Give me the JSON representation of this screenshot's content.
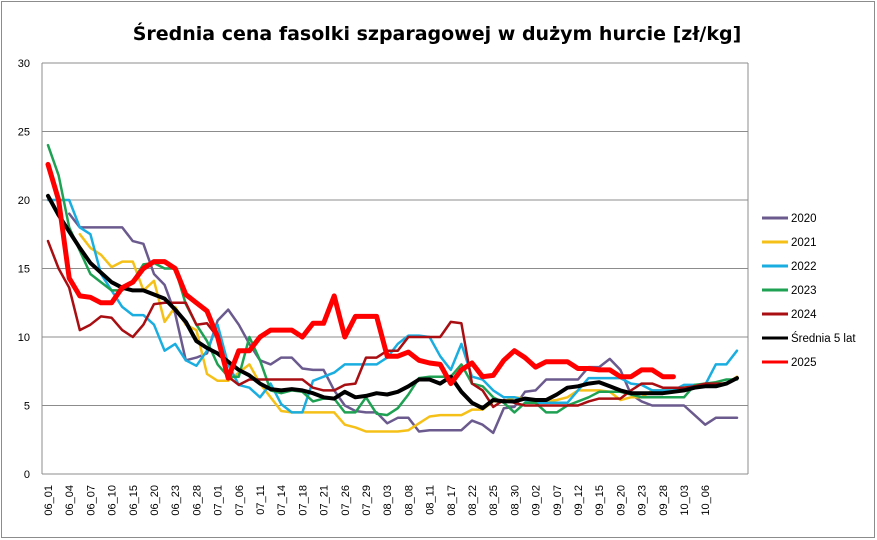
{
  "chart_data": {
    "type": "line",
    "title": "Średnia cena fasolki szparagowej w dużym hurcie [zł/kg]",
    "xlabel": "",
    "ylabel": "",
    "ylim": [
      0,
      30
    ],
    "y_ticks": [
      0,
      5,
      10,
      15,
      20,
      25,
      30
    ],
    "grid": "horizontal",
    "legend_position": "right",
    "x_tick_labels": [
      "06_01",
      "06_04",
      "06_07",
      "06_10",
      "06_15",
      "06_20",
      "06_23",
      "06_28",
      "07_01",
      "07_06",
      "07_11",
      "07_14",
      "07_18",
      "07_21",
      "07_26",
      "07_29",
      "08_03",
      "08_08",
      "08_11",
      "08_17",
      "08_22",
      "08_25",
      "08_30",
      "09_02",
      "09_07",
      "09_12",
      "09_15",
      "09_20",
      "09_23",
      "09_28",
      "10_03",
      "10_06"
    ],
    "points_per_tick": 2,
    "series": [
      {
        "name": "2020",
        "color": "#6B5A8E",
        "width": 2.5,
        "values": [
          null,
          null,
          19,
          18,
          18,
          18,
          18,
          18,
          17,
          16.8,
          14.6,
          13.8,
          11.7,
          8.3,
          8.5,
          8.8,
          11.2,
          12,
          10.9,
          9.5,
          8.3,
          8,
          8.5,
          8.5,
          7.7,
          7.6,
          7.6,
          6.1,
          5,
          4.6,
          4.5,
          4.5,
          3.7,
          4.1,
          4.1,
          3.1,
          3.2,
          3.2,
          3.2,
          3.2,
          3.9,
          3.6,
          3,
          4.8,
          4.9,
          6,
          6.1,
          6.9,
          6.9,
          6.9,
          6.9,
          7.8,
          7.8,
          8.4,
          7.6,
          5.8,
          5.3,
          5,
          5,
          5,
          5,
          4.3,
          3.6,
          4.1,
          4.1,
          4.1
        ]
      },
      {
        "name": "2021",
        "color": "#F5C018",
        "width": 2.5,
        "values": [
          null,
          null,
          null,
          17.5,
          16.5,
          16,
          15.1,
          15.5,
          15.5,
          13.4,
          14.1,
          11.1,
          12.2,
          10.9,
          10.5,
          7.3,
          6.8,
          6.8,
          7.4,
          8,
          6.6,
          5.6,
          4.6,
          4.5,
          4.5,
          4.5,
          4.5,
          4.5,
          3.6,
          3.4,
          3.1,
          3.1,
          3.1,
          3.1,
          3.2,
          3.7,
          4.2,
          4.3,
          4.3,
          4.3,
          4.7,
          4.7,
          5.3,
          5.3,
          5.6,
          5.5,
          5.3,
          5.3,
          5.4,
          5.6,
          6.1,
          6.1,
          6.1,
          6,
          5.4,
          5.6,
          5.6,
          6.1,
          6.1,
          6.1,
          6.4,
          6.4,
          6.6,
          6.6,
          6.6,
          7.1
        ]
      },
      {
        "name": "2022",
        "color": "#1AAEE0",
        "width": 2.5,
        "values": [
          20,
          20,
          20,
          18,
          17.5,
          14.6,
          13.4,
          12.2,
          11.6,
          11.6,
          10.9,
          9,
          9.5,
          8.3,
          7.9,
          9,
          10.9,
          8,
          6.5,
          6.3,
          5.6,
          6.6,
          5.1,
          4.5,
          4.5,
          6.8,
          7.1,
          7.4,
          8,
          8,
          8,
          8,
          8.5,
          9.5,
          10.1,
          10.1,
          10,
          8.6,
          7.6,
          9.5,
          7.1,
          6.9,
          6.1,
          5.6,
          5.6,
          5.4,
          5.2,
          5.2,
          5.2,
          5.2,
          6.1,
          7,
          7,
          7,
          7,
          6.6,
          6.5,
          6.1,
          6.1,
          6.1,
          6.5,
          6.5,
          6.5,
          8,
          8,
          9
        ]
      },
      {
        "name": "2023",
        "color": "#1FA153",
        "width": 2.5,
        "values": [
          24,
          21.8,
          18,
          16.3,
          14.6,
          14,
          13.4,
          13.4,
          14.1,
          15.3,
          15.4,
          15,
          15,
          12.4,
          10.9,
          9.7,
          8,
          7.1,
          7.1,
          10,
          8.3,
          6.1,
          5.9,
          6.1,
          6,
          5.3,
          5.5,
          5.5,
          4.5,
          4.5,
          5.6,
          4.4,
          4.3,
          4.8,
          5.8,
          7,
          7.1,
          7.1,
          7.1,
          8,
          6.6,
          6.4,
          5.6,
          5.2,
          4.5,
          5.2,
          5.2,
          4.5,
          4.5,
          5,
          5.3,
          5.6,
          6,
          6,
          6,
          5.8,
          5.6,
          5.6,
          5.6,
          5.6,
          5.6,
          6.5,
          6.6,
          6.7,
          6.9,
          6.9
        ]
      },
      {
        "name": "2024",
        "color": "#A80E12",
        "width": 2.5,
        "values": [
          17,
          15,
          13.6,
          10.5,
          10.9,
          11.5,
          11.4,
          10.5,
          10,
          10.9,
          12.4,
          12.5,
          12.5,
          12.5,
          10.9,
          11,
          10,
          7.1,
          6.5,
          6.9,
          6.9,
          6.9,
          6.9,
          6.9,
          6.9,
          6.3,
          6.1,
          6.1,
          6.5,
          6.6,
          8.5,
          8.5,
          9,
          9,
          10,
          10,
          10,
          10,
          11.1,
          11,
          6.6,
          6.1,
          4.9,
          5.4,
          5.2,
          5,
          5,
          5,
          5,
          5,
          5,
          5.3,
          5.5,
          5.5,
          5.5,
          6.1,
          6.6,
          6.6,
          6.3,
          6.3,
          6.3,
          6.4,
          6.6,
          6.6,
          6.6,
          7
        ]
      },
      {
        "name": "Średnia 5 lat",
        "color": "#000000",
        "width": 4,
        "values": [
          20.3,
          18.9,
          17.7,
          16.5,
          15.4,
          14.7,
          14,
          13.6,
          13.4,
          13.4,
          13.1,
          12.8,
          12,
          11.1,
          9.7,
          9.2,
          8.8,
          8.2,
          7.6,
          7.2,
          6.6,
          6.2,
          6.1,
          6.2,
          6.1,
          5.9,
          5.6,
          5.5,
          6,
          5.6,
          5.7,
          5.9,
          5.8,
          6,
          6.4,
          6.9,
          6.9,
          6.6,
          7.1,
          6,
          5.2,
          4.8,
          5.4,
          5.3,
          5.3,
          5.5,
          5.4,
          5.4,
          5.8,
          6.3,
          6.4,
          6.6,
          6.7,
          6.4,
          6.1,
          5.9,
          5.9,
          5.9,
          5.9,
          6,
          6.1,
          6.3,
          6.4,
          6.4,
          6.6,
          7
        ]
      },
      {
        "name": "2025",
        "color": "#FF0000",
        "width": 5,
        "values": [
          22.6,
          20,
          14.3,
          13,
          12.9,
          12.5,
          12.5,
          13.6,
          14,
          15,
          15.5,
          15.5,
          15,
          13.1,
          12.5,
          11.9,
          10,
          7,
          9,
          9,
          10,
          10.5,
          10.5,
          10.5,
          10,
          11,
          11,
          13,
          10,
          11.5,
          11.5,
          11.5,
          8.6,
          8.6,
          8.9,
          8.3,
          8.1,
          8,
          6.6,
          7.6,
          8.1,
          7.1,
          7.2,
          8.3,
          9,
          8.5,
          7.8,
          8.2,
          8.2,
          8.2,
          7.7,
          7.7,
          7.6,
          7.6,
          7.1,
          7.1,
          7.6,
          7.6,
          7.1,
          7.1
        ]
      }
    ]
  }
}
